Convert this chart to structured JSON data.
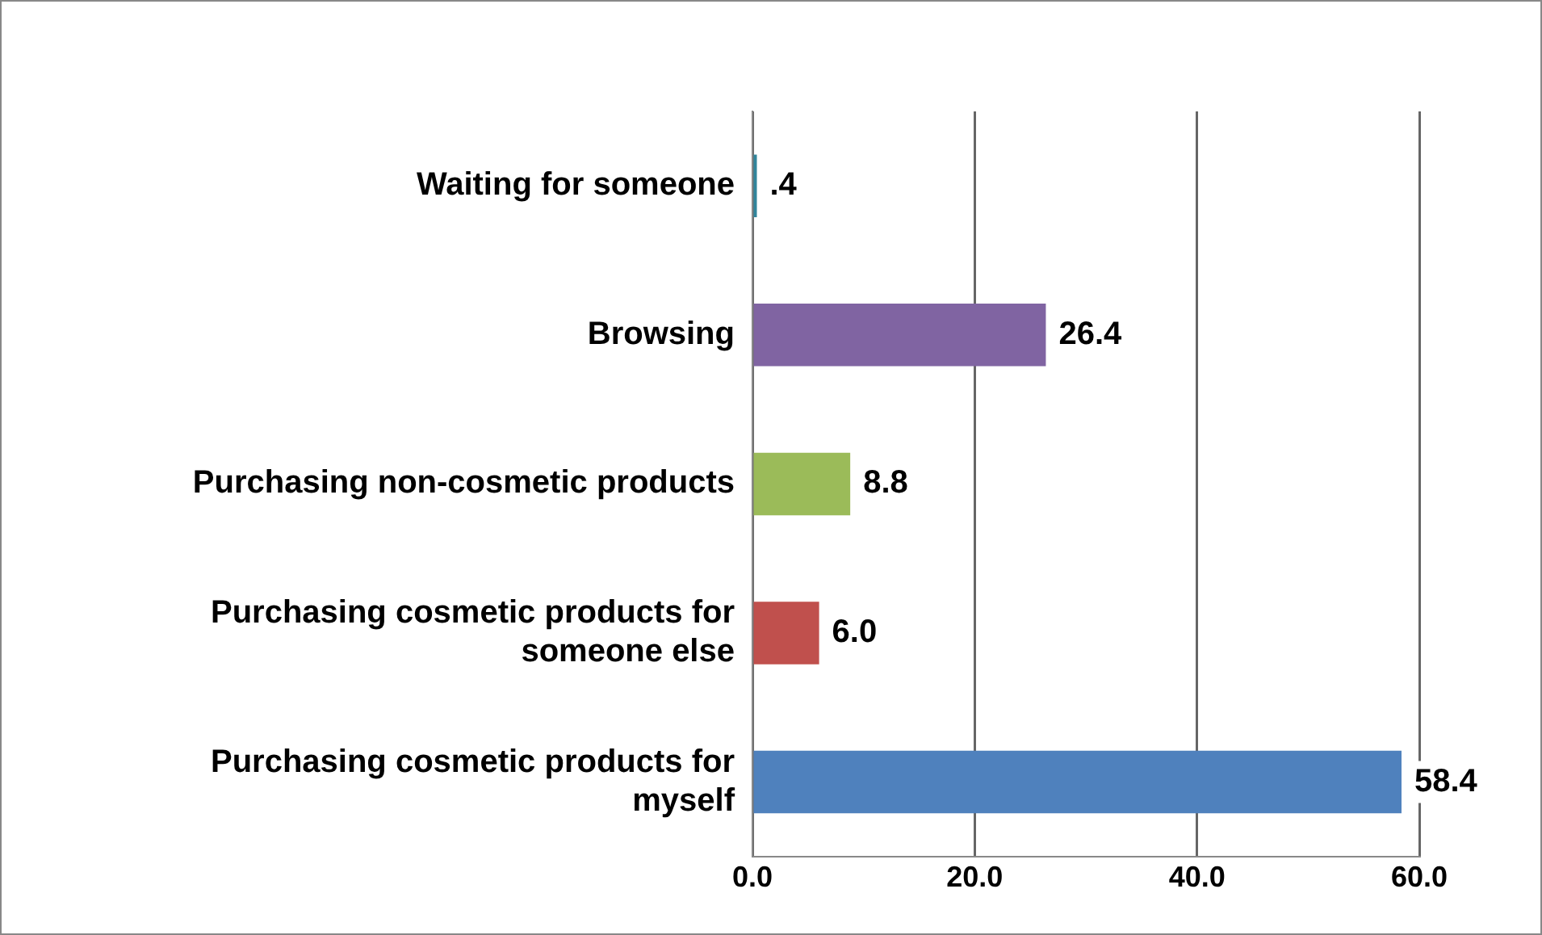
{
  "chart_data": {
    "type": "bar",
    "orientation": "horizontal",
    "categories": [
      "Waiting for someone",
      "Browsing",
      "Purchasing non-cosmetic products",
      "Purchasing cosmetic products for someone else",
      "Purchasing cosmetic products for myself"
    ],
    "values": [
      0.4,
      26.4,
      8.8,
      6.0,
      58.4
    ],
    "colors": [
      "#31859c",
      "#8064a2",
      "#9bbb59",
      "#c0504d",
      "#4f81bd"
    ],
    "value_labels": [
      ".4",
      "26.4",
      "8.8",
      "6.0",
      "58.4"
    ],
    "xlim": [
      0,
      60
    ],
    "xticks": [
      {
        "value": 0,
        "label": "0.0"
      },
      {
        "value": 20,
        "label": "20.0"
      },
      {
        "value": 40,
        "label": "40.0"
      },
      {
        "value": 60,
        "label": "60.0"
      }
    ],
    "grid": "x",
    "legend": false
  }
}
